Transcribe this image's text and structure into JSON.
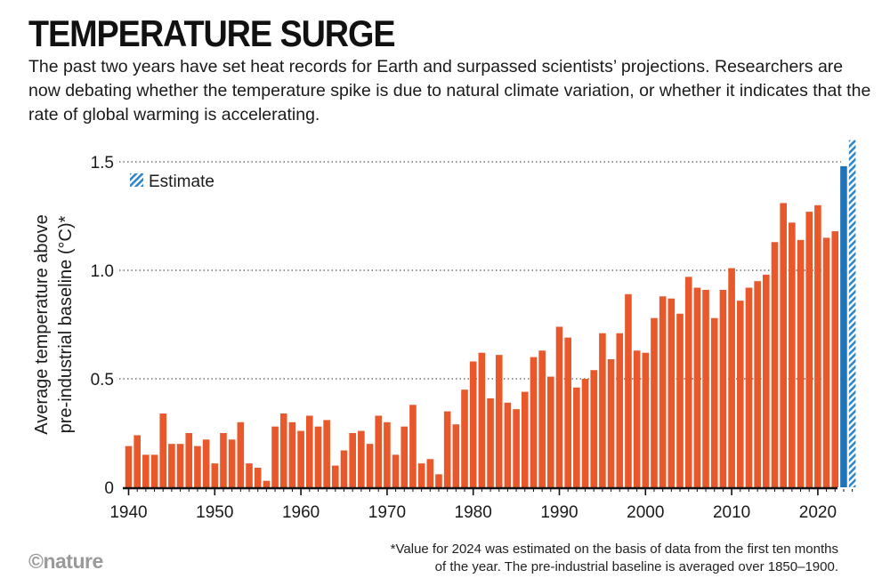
{
  "header": {
    "title": "TEMPERATURE SURGE",
    "subtitle": "The past two years have set heat records for Earth and surpassed scientists’ projections. Researchers are now debating whether the temperature spike is due to natural climate variation, or whether it indicates that the rate of global warming is accelerating."
  },
  "footnote": {
    "line1": "*Value for 2024 was estimated on the basis of data from the first ten months",
    "line2": "of the year. The pre-industrial baseline is averaged over 1850–1900."
  },
  "brand": {
    "text": "©nature"
  },
  "colors": {
    "bar": "#e8582a",
    "highlight": "#1f74b8",
    "estimate": "#2f86c8"
  },
  "chart_data": {
    "type": "bar",
    "title": "",
    "xlabel": "",
    "ylabel_line1": "Average temperature above",
    "ylabel_line2": "pre-industrial baseline (°C)*",
    "ylim": [
      0,
      1.6
    ],
    "yticks": [
      0,
      0.5,
      1.0,
      1.5
    ],
    "ytick_labels": [
      "0",
      "0.5",
      "1.0",
      "1.5"
    ],
    "xticks": [
      1940,
      1950,
      1960,
      1970,
      1980,
      1990,
      2000,
      2010,
      2020
    ],
    "xtick_labels": [
      "1940",
      "1950",
      "1960",
      "1970",
      "1980",
      "1990",
      "2000",
      "2010",
      "2020"
    ],
    "legend": {
      "label": "Estimate",
      "position": "top-left"
    },
    "highlight_year": 2023,
    "estimate_year": 2024,
    "years": [
      1940,
      1941,
      1942,
      1943,
      1944,
      1945,
      1946,
      1947,
      1948,
      1949,
      1950,
      1951,
      1952,
      1953,
      1954,
      1955,
      1956,
      1957,
      1958,
      1959,
      1960,
      1961,
      1962,
      1963,
      1964,
      1965,
      1966,
      1967,
      1968,
      1969,
      1970,
      1971,
      1972,
      1973,
      1974,
      1975,
      1976,
      1977,
      1978,
      1979,
      1980,
      1981,
      1982,
      1983,
      1984,
      1985,
      1986,
      1987,
      1988,
      1989,
      1990,
      1991,
      1992,
      1993,
      1994,
      1995,
      1996,
      1997,
      1998,
      1999,
      2000,
      2001,
      2002,
      2003,
      2004,
      2005,
      2006,
      2007,
      2008,
      2009,
      2010,
      2011,
      2012,
      2013,
      2014,
      2015,
      2016,
      2017,
      2018,
      2019,
      2020,
      2021,
      2022,
      2023,
      2024
    ],
    "values": [
      0.19,
      0.24,
      0.15,
      0.15,
      0.34,
      0.2,
      0.2,
      0.25,
      0.19,
      0.22,
      0.11,
      0.25,
      0.22,
      0.3,
      0.11,
      0.09,
      0.03,
      0.28,
      0.34,
      0.3,
      0.26,
      0.33,
      0.28,
      0.31,
      0.1,
      0.17,
      0.25,
      0.26,
      0.2,
      0.33,
      0.3,
      0.15,
      0.28,
      0.38,
      0.11,
      0.13,
      0.06,
      0.35,
      0.29,
      0.45,
      0.58,
      0.62,
      0.41,
      0.61,
      0.39,
      0.36,
      0.44,
      0.6,
      0.63,
      0.51,
      0.74,
      0.69,
      0.46,
      0.5,
      0.54,
      0.71,
      0.59,
      0.71,
      0.89,
      0.63,
      0.62,
      0.78,
      0.88,
      0.87,
      0.8,
      0.97,
      0.92,
      0.91,
      0.78,
      0.91,
      1.01,
      0.86,
      0.92,
      0.95,
      0.98,
      1.13,
      1.31,
      1.22,
      1.14,
      1.27,
      1.3,
      1.15,
      1.18,
      1.48,
      1.6
    ]
  }
}
